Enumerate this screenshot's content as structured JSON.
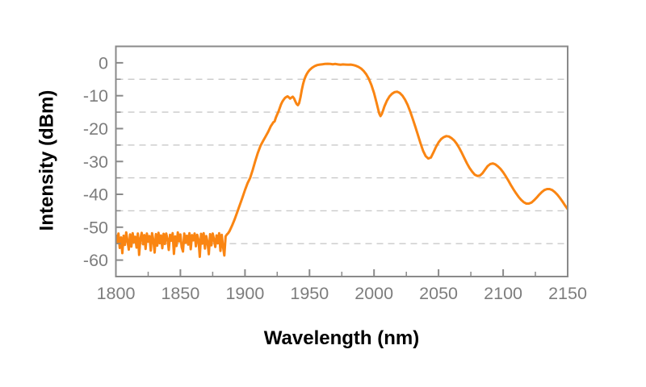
{
  "figure": {
    "background": "#FFFFFF"
  },
  "chart_data": {
    "type": "line",
    "title": "",
    "xlabel": "Wavelength (nm)",
    "ylabel": "Intensity (dBm)",
    "xlim": [
      1800,
      2150
    ],
    "ylim": [
      -65,
      5
    ],
    "x_major_ticks": [
      1800,
      1850,
      1900,
      1950,
      2000,
      2050,
      2100,
      2150
    ],
    "x_minor_ticks": [
      1825,
      1875,
      1925,
      1975,
      2025,
      2075,
      2125
    ],
    "y_major_ticks": [
      0,
      -10,
      -20,
      -30,
      -40,
      -50,
      -60
    ],
    "y_gridlines": [
      -5,
      -15,
      -25,
      -35,
      -45,
      -55
    ],
    "grid": "dashed-horizontal",
    "legend": "none",
    "colors": {
      "curve": "#FA8512",
      "axis": "#8A8A8A",
      "tick_labels": "#7D7D7D",
      "grid": "#C9C9C9",
      "axis_titles": "#000000",
      "background": "#FFFFFF"
    },
    "series": [
      {
        "name": "osa-spectrum",
        "color": "#FA8512",
        "points": [
          [
            1800,
            -52.4
          ],
          [
            1801,
            -54.8
          ],
          [
            1802,
            -51.9
          ],
          [
            1803,
            -56.3
          ],
          [
            1804,
            -53.1
          ],
          [
            1805,
            -57.9
          ],
          [
            1806,
            -52.6
          ],
          [
            1807,
            -55.4
          ],
          [
            1808,
            -51.6
          ],
          [
            1809,
            -54.2
          ],
          [
            1810,
            -56.8
          ],
          [
            1811,
            -52.2
          ],
          [
            1812,
            -55.9
          ],
          [
            1813,
            -51.8
          ],
          [
            1814,
            -54.6
          ],
          [
            1815,
            -52.9
          ],
          [
            1816,
            -56.2
          ],
          [
            1817,
            -51.9
          ],
          [
            1818,
            -58.4
          ],
          [
            1819,
            -53.4
          ],
          [
            1820,
            -51.7
          ],
          [
            1821,
            -55.2
          ],
          [
            1822,
            -52.4
          ],
          [
            1823,
            -56.6
          ],
          [
            1824,
            -51.9
          ],
          [
            1825,
            -54.4
          ],
          [
            1826,
            -52.7
          ],
          [
            1827,
            -57.1
          ],
          [
            1828,
            -51.8
          ],
          [
            1829,
            -53.9
          ],
          [
            1830,
            -57.7
          ],
          [
            1831,
            -52.1
          ],
          [
            1832,
            -55.6
          ],
          [
            1833,
            -51.7
          ],
          [
            1834,
            -54.9
          ],
          [
            1835,
            -52.5
          ],
          [
            1836,
            -56.4
          ],
          [
            1837,
            -52.0
          ],
          [
            1838,
            -55.1
          ],
          [
            1839,
            -51.9
          ],
          [
            1840,
            -53.6
          ],
          [
            1841,
            -56.9
          ],
          [
            1842,
            -52.3
          ],
          [
            1843,
            -54.1
          ],
          [
            1844,
            -51.8
          ],
          [
            1845,
            -58.1
          ],
          [
            1846,
            -52.8
          ],
          [
            1847,
            -55.7
          ],
          [
            1848,
            -51.6
          ],
          [
            1849,
            -54.3
          ],
          [
            1850,
            -52.2
          ],
          [
            1851,
            -56.1
          ],
          [
            1852,
            -57.4
          ],
          [
            1853,
            -51.9
          ],
          [
            1854,
            -54.7
          ],
          [
            1855,
            -52.6
          ],
          [
            1856,
            -55.3
          ],
          [
            1857,
            -51.8
          ],
          [
            1858,
            -56.7
          ],
          [
            1859,
            -52.4
          ],
          [
            1860,
            -54.0
          ],
          [
            1861,
            -51.9
          ],
          [
            1862,
            -55.8
          ],
          [
            1863,
            -52.3
          ],
          [
            1864,
            -53.8
          ],
          [
            1865,
            -59.0
          ],
          [
            1866,
            -52.0
          ],
          [
            1867,
            -55.0
          ],
          [
            1868,
            -51.8
          ],
          [
            1869,
            -56.5
          ],
          [
            1870,
            -52.7
          ],
          [
            1871,
            -54.5
          ],
          [
            1872,
            -58.2
          ],
          [
            1873,
            -52.1
          ],
          [
            1874,
            -55.5
          ],
          [
            1875,
            -51.9
          ],
          [
            1876,
            -53.7
          ],
          [
            1877,
            -56.0
          ],
          [
            1878,
            -52.5
          ],
          [
            1879,
            -54.9
          ],
          [
            1880,
            -51.8
          ],
          [
            1881,
            -57.2
          ],
          [
            1882,
            -52.3
          ],
          [
            1883,
            -55.9
          ],
          [
            1884,
            -58.6
          ],
          [
            1885,
            -52.8
          ],
          [
            1886,
            -52.2
          ],
          [
            1887,
            -51.8
          ],
          [
            1888,
            -51.2
          ],
          [
            1890,
            -49.5
          ],
          [
            1892,
            -47.6
          ],
          [
            1894,
            -45.4
          ],
          [
            1896,
            -43.2
          ],
          [
            1898,
            -41.0
          ],
          [
            1900,
            -38.7
          ],
          [
            1902,
            -36.6
          ],
          [
            1904,
            -35.0
          ],
          [
            1906,
            -32.6
          ],
          [
            1908,
            -29.9
          ],
          [
            1910,
            -27.4
          ],
          [
            1912,
            -25.3
          ],
          [
            1914,
            -23.8
          ],
          [
            1916,
            -22.4
          ],
          [
            1918,
            -21.0
          ],
          [
            1920,
            -19.3
          ],
          [
            1921,
            -18.7
          ],
          [
            1922,
            -18.1
          ],
          [
            1923,
            -17.8
          ],
          [
            1924,
            -16.6
          ],
          [
            1925,
            -15.7
          ],
          [
            1926,
            -14.8
          ],
          [
            1927,
            -13.7
          ],
          [
            1928,
            -12.6
          ],
          [
            1929,
            -11.8
          ],
          [
            1930,
            -11.2
          ],
          [
            1931,
            -10.7
          ],
          [
            1932,
            -10.4
          ],
          [
            1933,
            -10.2
          ],
          [
            1934,
            -10.5
          ],
          [
            1935,
            -10.9
          ],
          [
            1936,
            -10.6
          ],
          [
            1937,
            -10.3
          ],
          [
            1938,
            -10.8
          ],
          [
            1939,
            -11.7
          ],
          [
            1940,
            -12.5
          ],
          [
            1941,
            -12.9
          ],
          [
            1942,
            -12.2
          ],
          [
            1943,
            -10.5
          ],
          [
            1944,
            -8.3
          ],
          [
            1945,
            -6.5
          ],
          [
            1946,
            -5.1
          ],
          [
            1947,
            -4.1
          ],
          [
            1948,
            -3.3
          ],
          [
            1949,
            -2.7
          ],
          [
            1950,
            -2.2
          ],
          [
            1952,
            -1.5
          ],
          [
            1954,
            -1.0
          ],
          [
            1956,
            -0.7
          ],
          [
            1958,
            -0.55
          ],
          [
            1960,
            -0.45
          ],
          [
            1962,
            -0.35
          ],
          [
            1964,
            -0.3
          ],
          [
            1966,
            -0.35
          ],
          [
            1968,
            -0.45
          ],
          [
            1970,
            -0.35
          ],
          [
            1972,
            -0.5
          ],
          [
            1974,
            -0.6
          ],
          [
            1976,
            -0.5
          ],
          [
            1978,
            -0.55
          ],
          [
            1980,
            -0.6
          ],
          [
            1982,
            -0.55
          ],
          [
            1984,
            -0.7
          ],
          [
            1986,
            -0.9
          ],
          [
            1988,
            -1.25
          ],
          [
            1990,
            -1.75
          ],
          [
            1992,
            -2.5
          ],
          [
            1994,
            -3.5
          ],
          [
            1996,
            -4.9
          ],
          [
            1998,
            -6.8
          ],
          [
            2000,
            -9.2
          ],
          [
            2002,
            -12.2
          ],
          [
            2004,
            -15.4
          ],
          [
            2005,
            -16.2
          ],
          [
            2006,
            -15.6
          ],
          [
            2007,
            -14.5
          ],
          [
            2008,
            -13.3
          ],
          [
            2010,
            -11.5
          ],
          [
            2012,
            -10.2
          ],
          [
            2014,
            -9.4
          ],
          [
            2016,
            -8.9
          ],
          [
            2018,
            -8.8
          ],
          [
            2020,
            -9.2
          ],
          [
            2022,
            -10.0
          ],
          [
            2024,
            -11.2
          ],
          [
            2026,
            -12.8
          ],
          [
            2028,
            -14.8
          ],
          [
            2030,
            -17.1
          ],
          [
            2032,
            -19.5
          ],
          [
            2034,
            -22.0
          ],
          [
            2036,
            -24.5
          ],
          [
            2038,
            -26.8
          ],
          [
            2040,
            -28.4
          ],
          [
            2042,
            -29.1
          ],
          [
            2044,
            -28.8
          ],
          [
            2046,
            -27.3
          ],
          [
            2048,
            -25.6
          ],
          [
            2050,
            -24.2
          ],
          [
            2052,
            -23.2
          ],
          [
            2054,
            -22.6
          ],
          [
            2056,
            -22.3
          ],
          [
            2058,
            -22.4
          ],
          [
            2060,
            -22.9
          ],
          [
            2062,
            -23.6
          ],
          [
            2064,
            -24.6
          ],
          [
            2066,
            -25.9
          ],
          [
            2068,
            -27.4
          ],
          [
            2070,
            -29.0
          ],
          [
            2072,
            -30.6
          ],
          [
            2074,
            -32.0
          ],
          [
            2076,
            -33.1
          ],
          [
            2078,
            -34.0
          ],
          [
            2080,
            -34.4
          ],
          [
            2082,
            -34.3
          ],
          [
            2084,
            -33.6
          ],
          [
            2086,
            -32.5
          ],
          [
            2088,
            -31.4
          ],
          [
            2090,
            -30.8
          ],
          [
            2092,
            -30.6
          ],
          [
            2094,
            -30.9
          ],
          [
            2096,
            -31.5
          ],
          [
            2098,
            -32.3
          ],
          [
            2100,
            -33.3
          ],
          [
            2102,
            -34.5
          ],
          [
            2104,
            -35.8
          ],
          [
            2106,
            -37.2
          ],
          [
            2108,
            -38.5
          ],
          [
            2110,
            -39.7
          ],
          [
            2112,
            -40.8
          ],
          [
            2114,
            -41.7
          ],
          [
            2116,
            -42.4
          ],
          [
            2118,
            -42.8
          ],
          [
            2120,
            -42.8
          ],
          [
            2122,
            -42.5
          ],
          [
            2124,
            -41.8
          ],
          [
            2126,
            -41.0
          ],
          [
            2128,
            -40.1
          ],
          [
            2130,
            -39.3
          ],
          [
            2132,
            -38.7
          ],
          [
            2134,
            -38.4
          ],
          [
            2136,
            -38.4
          ],
          [
            2138,
            -38.7
          ],
          [
            2140,
            -39.3
          ],
          [
            2142,
            -40.1
          ],
          [
            2144,
            -41.1
          ],
          [
            2146,
            -42.2
          ],
          [
            2148,
            -43.4
          ],
          [
            2150,
            -44.5
          ]
        ]
      }
    ]
  }
}
